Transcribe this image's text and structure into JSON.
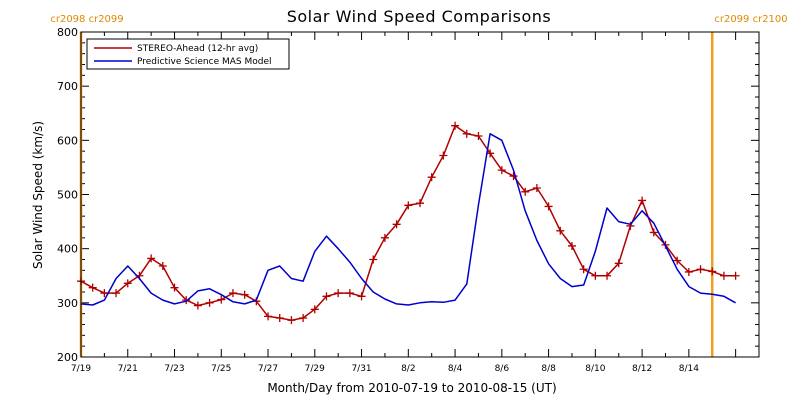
{
  "chart_data": {
    "type": "line",
    "title": "Solar Wind Speed Comparisons",
    "xlabel": "Month/Day from 2010-07-19 to 2010-08-15 (UT)",
    "ylabel": "Solar Wind Speed (km/s)",
    "ylim": [
      200,
      800
    ],
    "yticks": [
      200,
      300,
      400,
      500,
      600,
      700,
      800
    ],
    "xlim": [
      "2010-07-19",
      "2010-08-17"
    ],
    "xtick_labels": [
      "7/19",
      "7/21",
      "7/23",
      "7/25",
      "7/27",
      "7/29",
      "7/31",
      "8/2",
      "8/4",
      "8/6",
      "8/8",
      "8/10",
      "8/12",
      "8/14"
    ],
    "xtick_dates": [
      "2010-07-19",
      "2010-07-21",
      "2010-07-23",
      "2010-07-25",
      "2010-07-27",
      "2010-07-29",
      "2010-07-31",
      "2010-08-02",
      "2010-08-04",
      "2010-08-06",
      "2010-08-08",
      "2010-08-10",
      "2010-08-12",
      "2010-08-14"
    ],
    "carrington_markers": [
      {
        "label": "cr2098 cr2099",
        "date": "2010-07-19",
        "side": "left"
      },
      {
        "label": "cr2099 cr2100",
        "date": "2010-08-15",
        "side": "right"
      }
    ],
    "legend_position": "top-left",
    "series": [
      {
        "name": "STEREO-Ahead (12-hr avg)",
        "color": "#b00000",
        "marker": "plus",
        "x": [
          "2010-07-19T00:00",
          "2010-07-19T12:00",
          "2010-07-20T00:00",
          "2010-07-20T12:00",
          "2010-07-21T00:00",
          "2010-07-21T12:00",
          "2010-07-22T00:00",
          "2010-07-22T12:00",
          "2010-07-23T00:00",
          "2010-07-23T12:00",
          "2010-07-24T00:00",
          "2010-07-24T12:00",
          "2010-07-25T00:00",
          "2010-07-25T12:00",
          "2010-07-26T00:00",
          "2010-07-26T12:00",
          "2010-07-27T00:00",
          "2010-07-27T12:00",
          "2010-07-28T00:00",
          "2010-07-28T12:00",
          "2010-07-29T00:00",
          "2010-07-29T12:00",
          "2010-07-30T00:00",
          "2010-07-30T12:00",
          "2010-07-31T00:00",
          "2010-07-31T12:00",
          "2010-08-01T00:00",
          "2010-08-01T12:00",
          "2010-08-02T00:00",
          "2010-08-02T12:00",
          "2010-08-03T00:00",
          "2010-08-03T12:00",
          "2010-08-04T00:00",
          "2010-08-04T12:00",
          "2010-08-05T00:00",
          "2010-08-05T12:00",
          "2010-08-06T00:00",
          "2010-08-06T12:00",
          "2010-08-07T00:00",
          "2010-08-07T12:00",
          "2010-08-08T00:00",
          "2010-08-08T12:00",
          "2010-08-09T00:00",
          "2010-08-09T12:00",
          "2010-08-10T00:00",
          "2010-08-10T12:00",
          "2010-08-11T00:00",
          "2010-08-11T12:00",
          "2010-08-12T00:00",
          "2010-08-12T12:00",
          "2010-08-13T00:00",
          "2010-08-13T12:00",
          "2010-08-14T00:00",
          "2010-08-14T12:00",
          "2010-08-15T00:00",
          "2010-08-15T12:00",
          "2010-08-16T00:00"
        ],
        "y": [
          340,
          328,
          318,
          318,
          336,
          350,
          382,
          368,
          328,
          305,
          295,
          300,
          306,
          318,
          315,
          303,
          275,
          272,
          268,
          272,
          288,
          312,
          318,
          318,
          312,
          380,
          420,
          445,
          480,
          484,
          532,
          572,
          627,
          612,
          608,
          576,
          545,
          534,
          505,
          512,
          478,
          433,
          405,
          362,
          350,
          350,
          373,
          442,
          489,
          430,
          407,
          378,
          357,
          362,
          358,
          350,
          350
        ]
      },
      {
        "name": "Predictive Science MAS Model",
        "color": "#0000cc",
        "marker": "none",
        "x": [
          "2010-07-19T00:00",
          "2010-07-19T12:00",
          "2010-07-20T00:00",
          "2010-07-20T12:00",
          "2010-07-21T00:00",
          "2010-07-21T12:00",
          "2010-07-22T00:00",
          "2010-07-22T12:00",
          "2010-07-23T00:00",
          "2010-07-23T12:00",
          "2010-07-24T00:00",
          "2010-07-24T12:00",
          "2010-07-25T00:00",
          "2010-07-25T12:00",
          "2010-07-26T00:00",
          "2010-07-26T12:00",
          "2010-07-27T00:00",
          "2010-07-27T12:00",
          "2010-07-28T00:00",
          "2010-07-28T12:00",
          "2010-07-29T00:00",
          "2010-07-29T12:00",
          "2010-07-30T00:00",
          "2010-07-30T12:00",
          "2010-07-31T00:00",
          "2010-07-31T12:00",
          "2010-08-01T00:00",
          "2010-08-01T12:00",
          "2010-08-02T00:00",
          "2010-08-02T12:00",
          "2010-08-03T00:00",
          "2010-08-03T12:00",
          "2010-08-04T00:00",
          "2010-08-04T12:00",
          "2010-08-05T00:00",
          "2010-08-05T12:00",
          "2010-08-06T00:00",
          "2010-08-06T12:00",
          "2010-08-07T00:00",
          "2010-08-07T12:00",
          "2010-08-08T00:00",
          "2010-08-08T12:00",
          "2010-08-09T00:00",
          "2010-08-09T12:00",
          "2010-08-10T00:00",
          "2010-08-10T12:00",
          "2010-08-11T00:00",
          "2010-08-11T12:00",
          "2010-08-12T00:00",
          "2010-08-12T12:00",
          "2010-08-13T00:00",
          "2010-08-13T12:00",
          "2010-08-14T00:00",
          "2010-08-14T12:00",
          "2010-08-15T00:00",
          "2010-08-15T12:00",
          "2010-08-16T00:00"
        ],
        "y": [
          298,
          296,
          305,
          345,
          368,
          345,
          318,
          305,
          298,
          303,
          322,
          326,
          315,
          302,
          298,
          305,
          360,
          368,
          345,
          340,
          395,
          423,
          400,
          375,
          345,
          320,
          307,
          298,
          296,
          300,
          302,
          301,
          305,
          335,
          480,
          612,
          600,
          545,
          470,
          415,
          372,
          345,
          330,
          333,
          395,
          475,
          450,
          445,
          470,
          447,
          405,
          362,
          330,
          318,
          316,
          312,
          300
        ]
      }
    ]
  }
}
